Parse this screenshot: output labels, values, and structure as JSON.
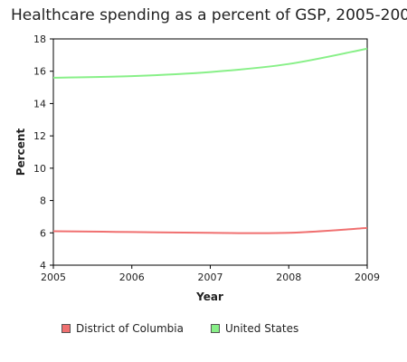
{
  "chart_data": {
    "type": "line",
    "title": "Healthcare spending as a percent of GSP, 2005-2009",
    "xlabel": "Year",
    "ylabel": "Percent",
    "x": [
      2005,
      2006,
      2007,
      2008,
      2009
    ],
    "xlim": [
      2005,
      2009
    ],
    "ylim": [
      4,
      18
    ],
    "yticks": [
      4,
      6,
      8,
      10,
      12,
      14,
      16,
      18
    ],
    "xticks": [
      2005,
      2006,
      2007,
      2008,
      2009
    ],
    "grid": false,
    "legend_position": "bottom",
    "series": [
      {
        "name": "District of Columbia",
        "color": "#f07070",
        "values": [
          6.1,
          6.05,
          6.0,
          6.0,
          6.3
        ]
      },
      {
        "name": "United States",
        "color": "#88f088",
        "values": [
          15.6,
          15.7,
          15.95,
          16.45,
          17.4
        ]
      }
    ]
  }
}
